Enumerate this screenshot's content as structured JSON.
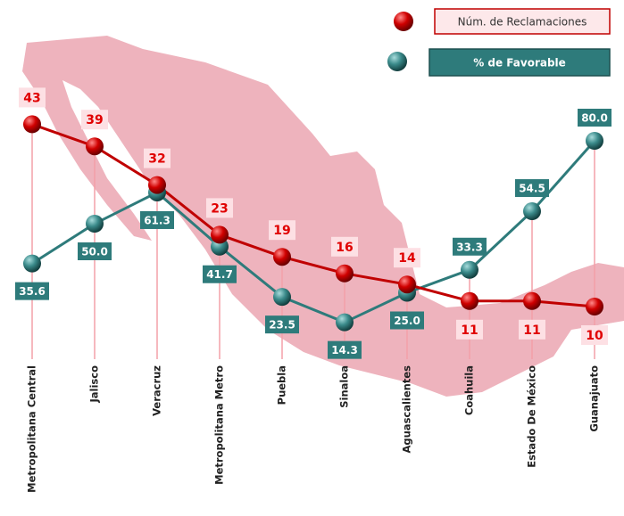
{
  "chart_data": {
    "type": "line",
    "categories": [
      "Metropolitana Central",
      "Jalisco",
      "Veracruz",
      "Metropolitana Metro",
      "Puebla",
      "Sinaloa",
      "Aguascalientes",
      "Coahuila",
      "Estado De México",
      "Guanajuato"
    ],
    "series": [
      {
        "name": "Núm. de Reclamaciones",
        "color": "#c00000",
        "values": [
          43,
          39,
          32,
          23,
          19,
          16,
          14,
          11,
          11,
          10
        ]
      },
      {
        "name": "% de Favorable",
        "color": "#2e7b7b",
        "axis": "y2",
        "values": [
          35.6,
          50.0,
          61.3,
          41.7,
          23.5,
          14.3,
          25.0,
          33.3,
          54.5,
          80.0
        ],
        "value_labels": [
          "35.6",
          "50.0",
          "61.3",
          "41.7",
          "23.5",
          "14.3",
          "25.0",
          "33.3",
          "54.5",
          "80.0"
        ]
      }
    ],
    "ylim": [
      0,
      55
    ],
    "y2lim": [
      0,
      110
    ],
    "legend": "top-right"
  }
}
